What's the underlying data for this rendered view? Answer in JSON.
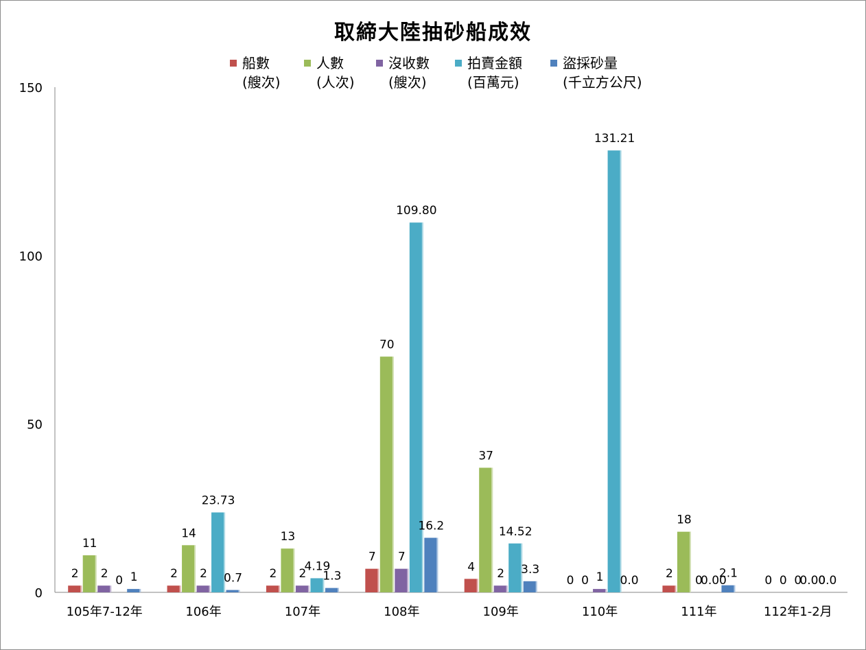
{
  "chart_data": {
    "type": "bar",
    "title": "取締大陸抽砂船成效",
    "categories": [
      "105年7-12年",
      "106年",
      "107年",
      "108年",
      "109年",
      "110年",
      "111年",
      "112年1-2月"
    ],
    "ylim": [
      0,
      150
    ],
    "yticks": [
      "0",
      "50",
      "100",
      "150"
    ],
    "grid": false,
    "legend_position": "top",
    "series": [
      {
        "name": "船數",
        "unit": "(艘次)",
        "color": "#c0504d",
        "values": [
          2,
          2,
          2,
          7,
          4,
          0,
          2,
          0
        ],
        "labels": [
          "2",
          "2",
          "2",
          "7",
          "4",
          "0",
          "2",
          "0"
        ]
      },
      {
        "name": "人數",
        "unit": "(人次)",
        "color": "#9bbb59",
        "values": [
          11,
          14,
          13,
          70,
          37,
          0,
          18,
          0
        ],
        "labels": [
          "11",
          "14",
          "13",
          "70",
          "37",
          "0",
          "18",
          "0"
        ]
      },
      {
        "name": "沒收數",
        "unit": "(艘次)",
        "color": "#8064a2",
        "values": [
          2,
          2,
          2,
          7,
          2,
          1,
          0,
          0
        ],
        "labels": [
          "2",
          "2",
          "2",
          "7",
          "2",
          "1",
          "0",
          "0"
        ]
      },
      {
        "name": "拍賣金額",
        "unit": "(百萬元)",
        "color": "#4bacc6",
        "values": [
          0,
          23.73,
          4.19,
          109.8,
          14.52,
          131.21,
          0.0,
          0.0
        ],
        "labels": [
          "0",
          "23.73",
          "4.19",
          "109.80",
          "14.52",
          "131.21",
          "0.00",
          "0.00"
        ]
      },
      {
        "name": "盜採砂量",
        "unit": "(千立方公尺)",
        "color": "#4f81bd",
        "values": [
          1,
          0.7,
          1.3,
          16.2,
          3.3,
          0.0,
          2.1,
          0.0
        ],
        "labels": [
          "1",
          "0.7",
          "1.3",
          "16.2",
          "3.3",
          "0.0",
          "2.1",
          "0.0"
        ]
      }
    ]
  }
}
